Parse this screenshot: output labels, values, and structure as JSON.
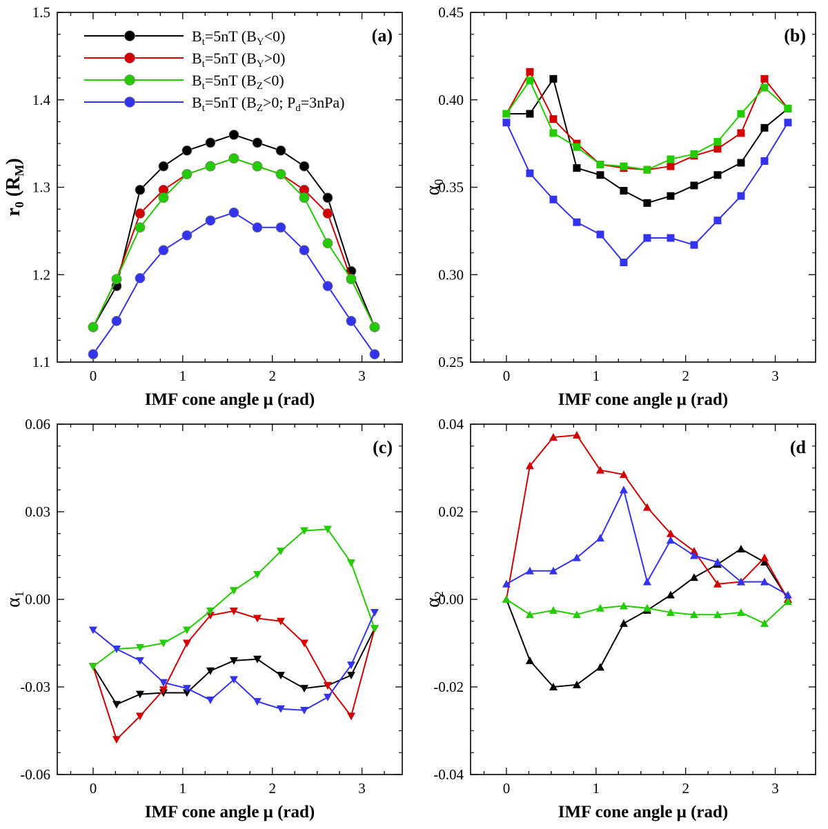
{
  "chart_data": [
    {
      "type": "line",
      "panel": "(a)",
      "xlabel": "IMF cone angle μ (rad)",
      "ylabel": {
        "main": "r",
        "sub": "0",
        "unit_open": " (R",
        "unit_sub": "M",
        "unit_close": ")"
      },
      "marker": "circle",
      "xlim": [
        -0.4,
        3.45
      ],
      "ylim": [
        1.1,
        1.5
      ],
      "xticks": [
        0,
        1,
        2,
        3
      ],
      "xtick_labels": [
        "0",
        "1",
        "2",
        "3"
      ],
      "yticks": [
        1.1,
        1.2,
        1.3,
        1.4,
        1.5
      ],
      "ytick_labels": [
        "1.1",
        "1.2",
        "1.3",
        "1.4",
        "1.5"
      ],
      "legend": {
        "location": "top-left",
        "entries": [
          {
            "main": "B",
            "sub": "t",
            "text": "=5nT (B",
            "sub2": "Y",
            "tail": "<0)"
          },
          {
            "main": "B",
            "sub": "t",
            "text": "=5nT (B",
            "sub2": "Y",
            "tail": ">0)"
          },
          {
            "main": "B",
            "sub": "t",
            "text": "=5nT (B",
            "sub2": "Z",
            "tail": "<0)"
          },
          {
            "main": "B",
            "sub": "t",
            "text": "=5nT (B",
            "sub2": "Z",
            "tail": ">0; P",
            "sub3": "d",
            "tail2": "=3nPa)"
          }
        ]
      },
      "x": [
        0,
        0.2618,
        0.5236,
        0.7854,
        1.0472,
        1.309,
        1.5708,
        1.8326,
        2.0944,
        2.3562,
        2.618,
        2.8798,
        3.1416
      ],
      "series": [
        {
          "name": "Bt=5nT (BY<0)",
          "color": "#000000",
          "values": [
            1.14,
            1.187,
            1.297,
            1.324,
            1.342,
            1.351,
            1.36,
            1.351,
            1.342,
            1.324,
            1.288,
            1.204,
            1.14
          ]
        },
        {
          "name": "Bt=5nT (BY>0)",
          "color": "#d40000",
          "values": [
            1.14,
            1.195,
            1.27,
            1.297,
            1.315,
            1.324,
            1.333,
            1.324,
            1.315,
            1.297,
            1.27,
            1.195,
            1.14
          ]
        },
        {
          "name": "Bt=5nT (BZ<0)",
          "color": "#22cc00",
          "values": [
            1.14,
            1.195,
            1.254,
            1.288,
            1.315,
            1.324,
            1.333,
            1.324,
            1.315,
            1.288,
            1.236,
            1.195,
            1.14
          ]
        },
        {
          "name": "Bt=5nT (BZ>0; Pd=3nPa)",
          "color": "#3333ee",
          "values": [
            1.109,
            1.147,
            1.196,
            1.228,
            1.245,
            1.262,
            1.271,
            1.254,
            1.254,
            1.228,
            1.187,
            1.147,
            1.109
          ]
        }
      ]
    },
    {
      "type": "line",
      "panel": "(b)",
      "xlabel": "IMF cone angle μ (rad)",
      "ylabel": {
        "main": "α",
        "sub": "0"
      },
      "marker": "square",
      "xlim": [
        -0.4,
        3.45
      ],
      "ylim": [
        0.25,
        0.45
      ],
      "xticks": [
        0,
        1,
        2,
        3
      ],
      "xtick_labels": [
        "0",
        "1",
        "2",
        "3"
      ],
      "yticks": [
        0.25,
        0.3,
        0.35,
        0.4,
        0.45
      ],
      "ytick_labels": [
        "0.25",
        "0.30",
        "0.35",
        "0.40",
        "0.45"
      ],
      "x": [
        0,
        0.2618,
        0.5236,
        0.7854,
        1.0472,
        1.309,
        1.5708,
        1.8326,
        2.0944,
        2.3562,
        2.618,
        2.8798,
        3.1416
      ],
      "series": [
        {
          "name": "Bt=5nT (BY<0)",
          "color": "#000000",
          "values": [
            0.392,
            0.392,
            0.412,
            0.361,
            0.357,
            0.348,
            0.341,
            0.345,
            0.351,
            0.357,
            0.364,
            0.384,
            0.395
          ]
        },
        {
          "name": "Bt=5nT (BY>0)",
          "color": "#d40000",
          "values": [
            0.392,
            0.416,
            0.389,
            0.375,
            0.363,
            0.361,
            0.36,
            0.362,
            0.368,
            0.372,
            0.381,
            0.412,
            0.395
          ]
        },
        {
          "name": "Bt=5nT (BZ<0)",
          "color": "#22cc00",
          "values": [
            0.392,
            0.411,
            0.381,
            0.373,
            0.363,
            0.362,
            0.36,
            0.366,
            0.369,
            0.376,
            0.392,
            0.407,
            0.395
          ]
        },
        {
          "name": "Bt=5nT (BZ>0; Pd=3nPa)",
          "color": "#3333ee",
          "values": [
            0.387,
            0.358,
            0.343,
            0.33,
            0.323,
            0.307,
            0.321,
            0.321,
            0.317,
            0.331,
            0.345,
            0.365,
            0.387
          ]
        }
      ]
    },
    {
      "type": "line",
      "panel": "(c)",
      "xlabel": "IMF cone angle μ (rad)",
      "ylabel": {
        "main": "α",
        "sub": "1"
      },
      "marker": "triangle-down",
      "xlim": [
        -0.4,
        3.45
      ],
      "ylim": [
        -0.06,
        0.06
      ],
      "xticks": [
        0,
        1,
        2,
        3
      ],
      "xtick_labels": [
        "0",
        "1",
        "2",
        "3"
      ],
      "yticks": [
        -0.06,
        -0.03,
        0,
        0.03,
        0.06
      ],
      "ytick_labels": [
        "-0.06",
        "-0.03",
        "0.00",
        "0.03",
        "0.06"
      ],
      "x": [
        0,
        0.2618,
        0.5236,
        0.7854,
        1.0472,
        1.309,
        1.5708,
        1.8326,
        2.0944,
        2.3562,
        2.618,
        2.8798,
        3.1416
      ],
      "series": [
        {
          "name": "Bt=5nT (BY<0)",
          "color": "#000000",
          "values": [
            -0.023,
            -0.036,
            -0.0325,
            -0.032,
            -0.032,
            -0.0245,
            -0.021,
            -0.0205,
            -0.026,
            -0.0305,
            -0.0295,
            -0.026,
            -0.01
          ]
        },
        {
          "name": "Bt=5nT (BY>0)",
          "color": "#d40000",
          "values": [
            -0.023,
            -0.048,
            -0.04,
            -0.031,
            -0.015,
            -0.0055,
            -0.004,
            -0.0065,
            -0.0075,
            -0.015,
            -0.0295,
            -0.04,
            -0.01
          ]
        },
        {
          "name": "Bt=5nT (BZ<0)",
          "color": "#22cc00",
          "values": [
            -0.023,
            -0.017,
            -0.0165,
            -0.015,
            -0.0105,
            -0.004,
            0.003,
            0.0085,
            0.0165,
            0.0235,
            0.024,
            0.0125,
            -0.01
          ]
        },
        {
          "name": "Bt=5nT (BZ>0; Pd=3nPa)",
          "color": "#3333ee",
          "values": [
            -0.0105,
            -0.017,
            -0.021,
            -0.0285,
            -0.0305,
            -0.0345,
            -0.0275,
            -0.035,
            -0.0375,
            -0.038,
            -0.0335,
            -0.0225,
            -0.0045
          ]
        }
      ]
    },
    {
      "type": "line",
      "panel": "(d",
      "xlabel": "IMF cone angle μ (rad)",
      "ylabel": {
        "main": "α",
        "sub": "2"
      },
      "marker": "triangle-up",
      "xlim": [
        -0.4,
        3.45
      ],
      "ylim": [
        -0.04,
        0.04
      ],
      "xticks": [
        0,
        1,
        2,
        3
      ],
      "xtick_labels": [
        "0",
        "1",
        "2",
        "3"
      ],
      "yticks": [
        -0.04,
        -0.02,
        0,
        0.02,
        0.04
      ],
      "ytick_labels": [
        "-0.04",
        "-0.02",
        "0.00",
        "0.02",
        "0.04"
      ],
      "x": [
        0,
        0.2618,
        0.5236,
        0.7854,
        1.0472,
        1.309,
        1.5708,
        1.8326,
        2.0944,
        2.3562,
        2.618,
        2.8798,
        3.1416
      ],
      "series": [
        {
          "name": "Bt=5nT (BY<0)",
          "color": "#000000",
          "values": [
            0.0,
            -0.014,
            -0.02,
            -0.0195,
            -0.0155,
            -0.0055,
            -0.0025,
            0.001,
            0.005,
            0.008,
            0.0115,
            0.0085,
            0.0
          ]
        },
        {
          "name": "Bt=5nT (BY>0)",
          "color": "#d40000",
          "values": [
            0.0,
            0.0305,
            0.037,
            0.0375,
            0.0295,
            0.0285,
            0.021,
            0.015,
            0.011,
            0.0035,
            0.004,
            0.0095,
            0.0
          ]
        },
        {
          "name": "Bt=5nT (BZ<0)",
          "color": "#22cc00",
          "values": [
            0.0,
            -0.0035,
            -0.0025,
            -0.0035,
            -0.002,
            -0.0015,
            -0.002,
            -0.003,
            -0.0035,
            -0.0035,
            -0.003,
            -0.0055,
            -0.0005
          ]
        },
        {
          "name": "Bt=5nT (BZ>0; Pd=3nPa)",
          "color": "#3333ee",
          "values": [
            0.0035,
            0.0065,
            0.0065,
            0.0095,
            0.014,
            0.025,
            0.004,
            0.0135,
            0.01,
            0.0085,
            0.004,
            0.004,
            0.001
          ]
        }
      ]
    }
  ]
}
